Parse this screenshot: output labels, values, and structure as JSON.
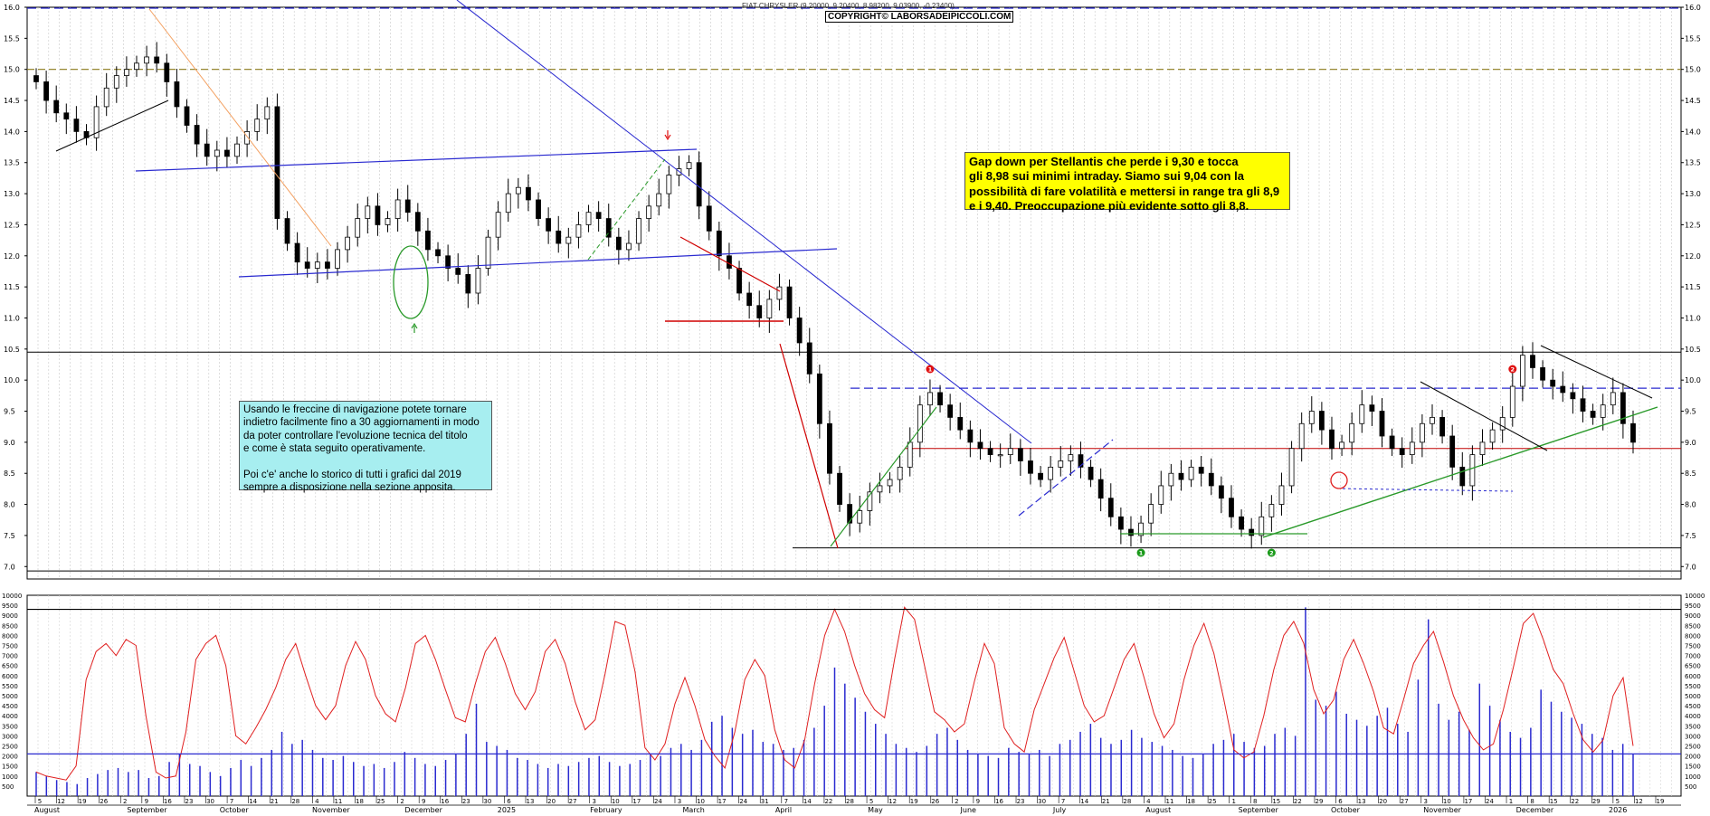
{
  "header": {
    "title_strip": "FIAT CHRYSLER (9.20000, 9.20400, 8.98200, 9.03900, -0.23400)",
    "copyright": "COPYRIGHT© LABORSADEIPICCOLI.COM"
  },
  "notes": {
    "yellow": "Gap down per Stellantis che perde i 9,30 e tocca\ngli 8,98 sui minimi intraday. Siamo sui 9,04  con la\npossibilità di fare volatilità e mettersi in range tra gli 8,9\ne i 9,40.  Preoccupazione più evidente sotto gli 8,8.",
    "cyan": "Usando le freccine di navigazione potete tornare\nindietro facilmente fino a 30 aggiornamenti in modo\nda poter controllare l'evoluzione tecnica del titolo\ne come è stata seguito operativamente.\n\nPoi c'e' anche lo storico di tutti i grafici dal 2019\nsempre a disposizione nella sezione apposita."
  },
  "chart_data": [
    {
      "type": "candlestick",
      "title": "FIAT CHRYSLER (9.20000, 9.20400, 8.98200, 9.03900, -0.23400)",
      "ylim": [
        6.8,
        16.0
      ],
      "y_ticks": [
        "7.0",
        "7.5",
        "8.0",
        "8.5",
        "9.0",
        "9.5",
        "10.0",
        "10.5",
        "11.0",
        "11.5",
        "12.0",
        "12.5",
        "13.0",
        "13.5",
        "14.0",
        "14.5",
        "15.0",
        "15.5",
        "16.0"
      ],
      "x_month_labels": [
        "August",
        "September",
        "October",
        "November",
        "December",
        "2025",
        "February",
        "March",
        "April",
        "May",
        "June",
        "July",
        "August",
        "September",
        "October",
        "November",
        "December",
        "2026"
      ],
      "x_day_labels": [
        "5",
        "12",
        "19",
        "26",
        "2",
        "9",
        "16",
        "23",
        "30",
        "7",
        "14",
        "21",
        "28",
        "4",
        "11",
        "18",
        "25",
        "2",
        "9",
        "16",
        "23",
        "30",
        "6",
        "13",
        "20",
        "27",
        "3",
        "10",
        "17",
        "24",
        "3",
        "10",
        "17",
        "24",
        "31",
        "7",
        "14",
        "22",
        "28",
        "5",
        "12",
        "19",
        "26",
        "2",
        "9",
        "16",
        "23",
        "30",
        "7",
        "14",
        "21",
        "28",
        "4",
        "11",
        "18",
        "25",
        "1",
        "8",
        "15",
        "22",
        "29",
        "6",
        "13",
        "20",
        "27",
        "3",
        "10",
        "17",
        "24",
        "1",
        "8",
        "15",
        "22",
        "29",
        "5",
        "12",
        "19"
      ],
      "close": [
        14.8,
        14.5,
        14.3,
        14.2,
        14.0,
        13.9,
        14.4,
        14.7,
        14.9,
        15.0,
        15.1,
        15.2,
        15.1,
        14.8,
        14.4,
        14.1,
        13.8,
        13.6,
        13.7,
        13.6,
        13.8,
        14.0,
        14.2,
        14.4,
        12.6,
        12.2,
        11.9,
        11.8,
        11.9,
        11.8,
        12.1,
        12.3,
        12.6,
        12.8,
        12.5,
        12.6,
        12.9,
        12.7,
        12.4,
        12.1,
        12.0,
        11.8,
        11.7,
        11.4,
        11.8,
        12.3,
        12.7,
        13.0,
        13.1,
        12.9,
        12.6,
        12.4,
        12.2,
        12.3,
        12.5,
        12.7,
        12.6,
        12.3,
        12.1,
        12.2,
        12.6,
        12.8,
        13.0,
        13.3,
        13.4,
        13.5,
        12.8,
        12.4,
        12.0,
        11.8,
        11.4,
        11.2,
        11.0,
        11.3,
        11.5,
        11.0,
        10.6,
        10.1,
        9.3,
        8.5,
        8.0,
        7.7,
        7.9,
        8.2,
        8.3,
        8.4,
        8.6,
        9.0,
        9.6,
        9.8,
        9.6,
        9.4,
        9.2,
        9.0,
        8.9,
        8.8,
        8.8,
        8.9,
        8.7,
        8.5,
        8.4,
        8.6,
        8.7,
        8.8,
        8.6,
        8.4,
        8.1,
        7.8,
        7.6,
        7.5,
        7.7,
        8.0,
        8.3,
        8.5,
        8.4,
        8.6,
        8.5,
        8.3,
        8.1,
        7.8,
        7.6,
        7.5,
        7.8,
        8.0,
        8.3,
        8.9,
        9.3,
        9.5,
        9.2,
        8.9,
        9.0,
        9.3,
        9.6,
        9.5,
        9.1,
        8.9,
        8.8,
        9.0,
        9.3,
        9.4,
        9.1,
        8.6,
        8.3,
        8.8,
        9.0,
        9.2,
        9.4,
        9.9,
        10.4,
        10.2,
        10.0,
        9.9,
        9.8,
        9.7,
        9.5,
        9.4,
        9.6,
        9.8,
        9.3,
        9.0
      ],
      "horizontal_levels": [
        15.0,
        10.45,
        9.87,
        8.9,
        7.3,
        6.93
      ],
      "annotations": [
        {
          "label": "1",
          "color": "red",
          "series_index": 89
        },
        {
          "label": "2",
          "color": "red",
          "series_index": 147
        },
        {
          "label": "1",
          "color": "green",
          "series_index": 110
        },
        {
          "label": "2",
          "color": "green",
          "series_index": 123
        }
      ]
    },
    {
      "type": "bar+line",
      "ylabel": "",
      "ylim": [
        0,
        10000
      ],
      "y_ticks": [
        "500",
        "1000",
        "1500",
        "2000",
        "2500",
        "3000",
        "3500",
        "4000",
        "4500",
        "5000",
        "5500",
        "6000",
        "6500",
        "7000",
        "7500",
        "8000",
        "8500",
        "9000",
        "9500",
        "10000"
      ],
      "reference_levels": [
        2100,
        9300
      ],
      "volume": [
        1200,
        1000,
        800,
        700,
        600,
        900,
        1100,
        1300,
        1400,
        1200,
        1300,
        900,
        1000,
        1700,
        2100,
        1600,
        1500,
        1200,
        1000,
        1400,
        1800,
        1500,
        1900,
        2300,
        3200,
        2600,
        2800,
        2300,
        1900,
        1800,
        2000,
        1700,
        1500,
        1600,
        1400,
        1700,
        2200,
        1900,
        1600,
        1500,
        1800,
        2100,
        3100,
        4600,
        2700,
        2500,
        2300,
        1900,
        1800,
        1600,
        1400,
        1600,
        1500,
        1700,
        1900,
        2000,
        1700,
        1500,
        1600,
        1800,
        2100,
        2000,
        2400,
        2600,
        2300,
        2800,
        3700,
        4000,
        3400,
        3100,
        3300,
        2700,
        2600,
        2300,
        2400,
        2800,
        3400,
        4500,
        6400,
        5600,
        4900,
        4200,
        3600,
        3100,
        2600,
        2400,
        2200,
        2500,
        3100,
        3400,
        2800,
        2300,
        2100,
        2000,
        1900,
        2400,
        2200,
        2100,
        2300,
        2000,
        2600,
        2800,
        3200,
        3600,
        2900,
        2600,
        2800,
        3300,
        2900,
        2700,
        2500,
        2300,
        2000,
        1900,
        2100,
        2600,
        2800,
        3100,
        2700,
        2400,
        2500,
        3100,
        3400,
        3000,
        9400,
        4800,
        4500,
        5200,
        4100,
        3800,
        3500,
        4000,
        4400,
        3600,
        3200,
        5800,
        8800,
        4600,
        3800,
        4200,
        3300,
        5600,
        4500,
        3800,
        3200,
        2900,
        3400,
        5300,
        4700,
        4200,
        3900,
        3600,
        3100,
        2900,
        2300,
        2600,
        2100
      ],
      "oscillator": [
        1200,
        1000,
        900,
        800,
        1500,
        5800,
        7200,
        7600,
        7000,
        7800,
        7500,
        4000,
        1200,
        900,
        1000,
        3200,
        6800,
        7600,
        8000,
        6500,
        3000,
        2600,
        3400,
        4300,
        5400,
        6800,
        7600,
        6000,
        4500,
        3800,
        4500,
        6500,
        7700,
        6800,
        5000,
        4100,
        3700,
        5400,
        7600,
        8000,
        6800,
        5300,
        3900,
        3700,
        5600,
        7200,
        7900,
        6600,
        5100,
        4300,
        5200,
        7200,
        7800,
        6600,
        4700,
        3300,
        3800,
        6100,
        8700,
        8500,
        6200,
        2400,
        1800,
        2600,
        4600,
        5900,
        4500,
        2800,
        2000,
        1400,
        3200,
        5800,
        6800,
        6000,
        3300,
        1800,
        1400,
        2800,
        5600,
        8000,
        9300,
        8200,
        6500,
        5100,
        4300,
        3900,
        6800,
        9400,
        8800,
        6500,
        4200,
        3800,
        3200,
        3600,
        5700,
        7600,
        6600,
        3400,
        2600,
        2200,
        4300,
        5600,
        6900,
        7900,
        6200,
        4500,
        3700,
        4000,
        5400,
        6800,
        7600,
        5900,
        4100,
        2900,
        3600,
        5800,
        7500,
        8600,
        7100,
        4800,
        2300,
        1900,
        2200,
        4000,
        6300,
        8000,
        8700,
        7600,
        5300,
        4100,
        4800,
        6800,
        7800,
        6600,
        5200,
        3400,
        3100,
        4800,
        6600,
        7500,
        8200,
        6700,
        5000,
        3800,
        2900,
        2300,
        2600,
        4300,
        6400,
        8600,
        9100,
        7800,
        6300,
        5600,
        4100,
        2800,
        2200,
        2800,
        5000,
        5900,
        2500
      ]
    }
  ]
}
